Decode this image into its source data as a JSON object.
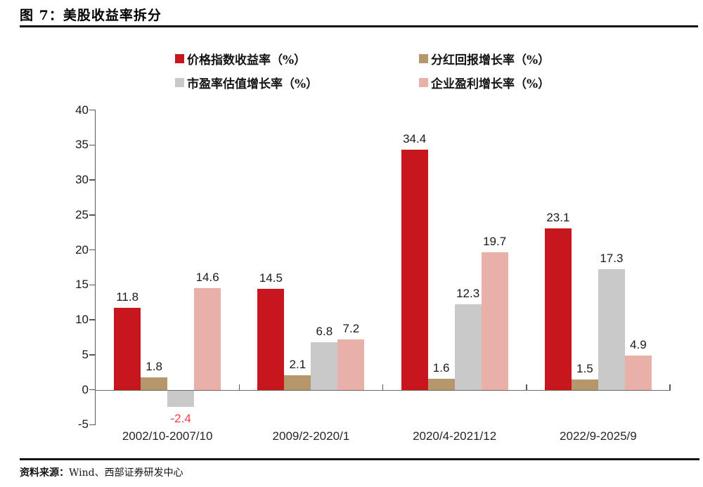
{
  "page": {
    "title": "图 7：美股收益率拆分",
    "source": {
      "label": "资料来源：",
      "text": "Wind、西部证券研发中心"
    }
  },
  "chart_data": {
    "type": "bar",
    "title": "美股收益率拆分",
    "categories": [
      "2002/10-2007/10",
      "2009/2-2020/1",
      "2020/4-2021/12",
      "2022/9-2025/9"
    ],
    "series": [
      {
        "name": "价格指数收益率（%）",
        "color": "#C7161D",
        "values": [
          11.8,
          14.5,
          34.4,
          23.1
        ]
      },
      {
        "name": "分红回报增长率（%）",
        "color": "#B6976C",
        "values": [
          1.8,
          2.1,
          1.6,
          1.5
        ]
      },
      {
        "name": "市盈率估值增长率（%）",
        "color": "#C9C9C9",
        "values": [
          -2.4,
          6.8,
          12.3,
          17.3
        ]
      },
      {
        "name": "企业盈利增长率（%）",
        "color": "#E9B0A8",
        "values": [
          14.6,
          7.2,
          19.7,
          4.9
        ]
      }
    ],
    "ylim": [
      -5,
      40
    ],
    "yticks": [
      40,
      35,
      30,
      25,
      20,
      15,
      10,
      5,
      0,
      -5
    ],
    "data_labels": true,
    "negative_label_color": "#FA3C40",
    "axis_color": "#595959",
    "text_color": "#1A1A1A",
    "legend_position": "top",
    "legend_rows": [
      [
        0,
        1
      ],
      [
        2,
        3
      ]
    ],
    "grid": false
  }
}
